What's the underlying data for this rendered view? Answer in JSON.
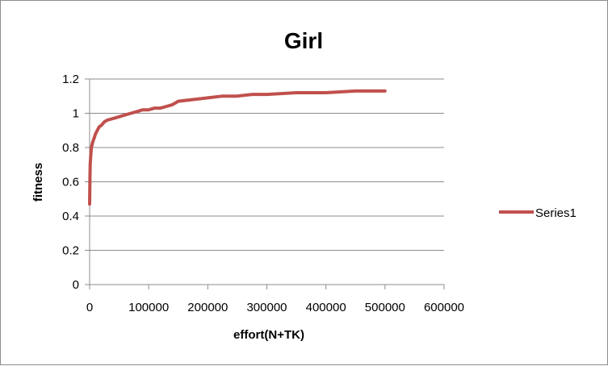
{
  "chart_data": {
    "type": "line",
    "title": "Girl",
    "xlabel": "effort(N+TK)",
    "ylabel": "fitness",
    "xlim": [
      0,
      600000
    ],
    "ylim": [
      0,
      1.2
    ],
    "x_ticks": [
      0,
      100000,
      200000,
      300000,
      400000,
      500000,
      600000
    ],
    "x_tick_labels": [
      "0",
      "100000",
      "200000",
      "300000",
      "400000",
      "500000",
      "600000"
    ],
    "y_ticks": [
      0,
      0.2,
      0.4,
      0.6,
      0.8,
      1,
      1.2
    ],
    "y_tick_labels": [
      "0",
      "0.2",
      "0.4",
      "0.6",
      "0.8",
      "1",
      "1.2"
    ],
    "grid": "horizontal",
    "legend": "right",
    "series": [
      {
        "name": "Series1",
        "color": "#c0504d",
        "x": [
          0,
          500,
          1000,
          2000,
          3000,
          5000,
          8000,
          10000,
          13000,
          16000,
          20000,
          25000,
          30000,
          40000,
          50000,
          60000,
          70000,
          80000,
          90000,
          100000,
          110000,
          120000,
          130000,
          140000,
          150000,
          175000,
          200000,
          225000,
          250000,
          275000,
          300000,
          350000,
          400000,
          450000,
          500000
        ],
        "values": [
          0.47,
          0.62,
          0.7,
          0.76,
          0.8,
          0.83,
          0.86,
          0.88,
          0.9,
          0.92,
          0.93,
          0.95,
          0.96,
          0.97,
          0.98,
          0.99,
          1.0,
          1.01,
          1.02,
          1.02,
          1.03,
          1.03,
          1.04,
          1.05,
          1.07,
          1.08,
          1.09,
          1.1,
          1.1,
          1.11,
          1.11,
          1.12,
          1.12,
          1.13,
          1.13
        ]
      }
    ]
  }
}
